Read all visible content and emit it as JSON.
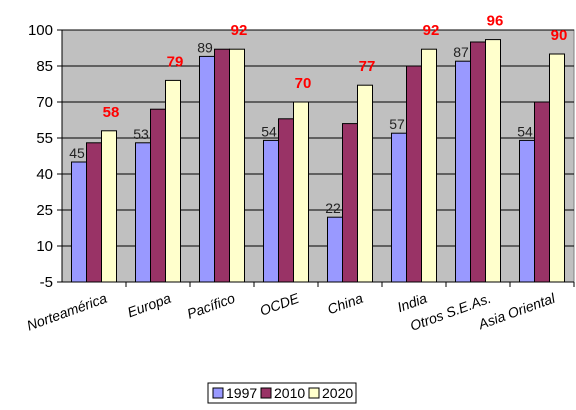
{
  "chart_data": {
    "type": "bar",
    "categories": [
      "Norteamérica",
      "Europa",
      "Pacífico",
      "OCDE",
      "China",
      "India",
      "Otros S.E.As.",
      "Asia Oriental"
    ],
    "series": [
      {
        "name": "1997",
        "values": [
          45,
          53,
          89,
          54,
          22,
          57,
          87,
          54
        ],
        "color": "#9999ff"
      },
      {
        "name": "2010",
        "values": [
          53,
          67,
          92,
          63,
          61,
          85,
          95,
          70
        ],
        "color": "#993366"
      },
      {
        "name": "2020",
        "values": [
          58,
          79,
          92,
          70,
          77,
          92,
          96,
          90
        ],
        "color": "#ffffcc"
      }
    ],
    "data_labels": [
      {
        "category": "Norteamérica",
        "series": "1997",
        "text": "45",
        "style": "plain"
      },
      {
        "category": "Norteamérica",
        "series": "2020",
        "text": "58",
        "style": "red-bold"
      },
      {
        "category": "Europa",
        "series": "1997",
        "text": "53",
        "style": "plain"
      },
      {
        "category": "Europa",
        "series": "2020",
        "text": "79",
        "style": "red-bold"
      },
      {
        "category": "Pacífico",
        "series": "1997",
        "text": "89",
        "style": "plain"
      },
      {
        "category": "Pacífico",
        "series": "2020",
        "text": "92",
        "style": "red-bold"
      },
      {
        "category": "OCDE",
        "series": "1997",
        "text": "54",
        "style": "plain"
      },
      {
        "category": "OCDE",
        "series": "2020",
        "text": "70",
        "style": "red-bold"
      },
      {
        "category": "China",
        "series": "1997",
        "text": "22",
        "style": "plain"
      },
      {
        "category": "China",
        "series": "2020",
        "text": "77",
        "style": "red-bold"
      },
      {
        "category": "India",
        "series": "1997",
        "text": "57",
        "style": "plain"
      },
      {
        "category": "India",
        "series": "2020",
        "text": "92",
        "style": "red-bold"
      },
      {
        "category": "Otros S.E.As.",
        "series": "1997",
        "text": "87",
        "style": "plain"
      },
      {
        "category": "Otros S.E.As.",
        "series": "2020",
        "text": "96",
        "style": "red-bold"
      },
      {
        "category": "Asia Oriental",
        "series": "1997",
        "text": "54",
        "style": "plain"
      },
      {
        "category": "Asia Oriental",
        "series": "2020",
        "text": "90",
        "style": "red-bold"
      }
    ],
    "yticks": [
      -5,
      10,
      25,
      40,
      55,
      70,
      85,
      100
    ],
    "ylim": [
      -5,
      100
    ],
    "grid": true,
    "plot_background": "#c0c0c0",
    "legend_position": "bottom-center",
    "title": "",
    "xlabel": "",
    "ylabel": ""
  }
}
